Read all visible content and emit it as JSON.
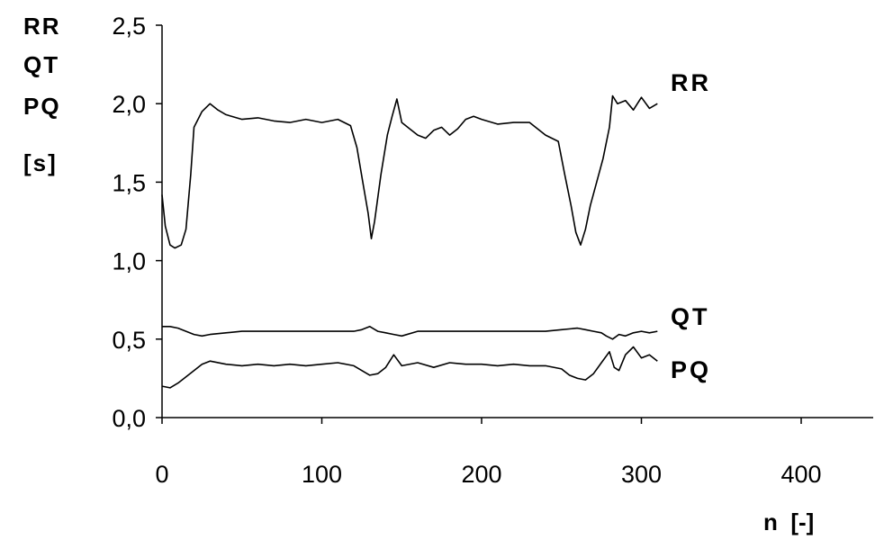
{
  "chart_data": {
    "type": "line",
    "ylabel_lines": [
      "RR",
      "QT",
      "PQ",
      "[s]"
    ],
    "xlabel": "n  [-]",
    "xlim": [
      0,
      450
    ],
    "ylim": [
      0,
      2.5
    ],
    "x_ticks": [
      0,
      100,
      200,
      300,
      400
    ],
    "x_tick_labels": [
      "0",
      "100",
      "200",
      "300",
      "400"
    ],
    "y_ticks": [
      0,
      0.5,
      1.0,
      1.5,
      2.0,
      2.5
    ],
    "y_tick_labels": [
      "0,0",
      "0,5",
      "1,0",
      "1,5",
      "2,0",
      "2,5"
    ],
    "grid": false,
    "series": [
      {
        "name": "RR",
        "x": [
          0,
          2,
          5,
          8,
          12,
          15,
          18,
          20,
          25,
          30,
          35,
          40,
          50,
          60,
          70,
          80,
          90,
          100,
          110,
          118,
          122,
          126,
          129,
          131,
          133,
          137,
          141,
          144,
          147,
          150,
          155,
          160,
          165,
          170,
          175,
          180,
          185,
          190,
          195,
          200,
          210,
          220,
          230,
          240,
          248,
          252,
          256,
          259,
          262,
          265,
          268,
          272,
          276,
          280,
          282,
          285,
          290,
          295,
          300,
          305,
          310
        ],
        "values": [
          1.42,
          1.22,
          1.1,
          1.08,
          1.1,
          1.2,
          1.55,
          1.85,
          1.95,
          2.0,
          1.96,
          1.93,
          1.9,
          1.91,
          1.89,
          1.88,
          1.9,
          1.88,
          1.9,
          1.86,
          1.72,
          1.48,
          1.3,
          1.14,
          1.25,
          1.55,
          1.8,
          1.92,
          2.03,
          1.88,
          1.84,
          1.8,
          1.78,
          1.83,
          1.85,
          1.8,
          1.84,
          1.9,
          1.92,
          1.9,
          1.87,
          1.88,
          1.88,
          1.8,
          1.76,
          1.55,
          1.35,
          1.18,
          1.1,
          1.2,
          1.35,
          1.5,
          1.65,
          1.85,
          2.05,
          2.0,
          2.02,
          1.96,
          2.04,
          1.97,
          2.0
        ]
      },
      {
        "name": "QT",
        "x": [
          0,
          5,
          10,
          15,
          20,
          25,
          30,
          40,
          50,
          60,
          80,
          100,
          120,
          125,
          130,
          135,
          140,
          145,
          150,
          160,
          170,
          180,
          200,
          220,
          240,
          250,
          260,
          265,
          270,
          275,
          278,
          282,
          286,
          290,
          295,
          300,
          305,
          310
        ],
        "values": [
          0.58,
          0.58,
          0.57,
          0.55,
          0.53,
          0.52,
          0.53,
          0.54,
          0.55,
          0.55,
          0.55,
          0.55,
          0.55,
          0.56,
          0.58,
          0.55,
          0.54,
          0.53,
          0.52,
          0.55,
          0.55,
          0.55,
          0.55,
          0.55,
          0.55,
          0.56,
          0.57,
          0.56,
          0.55,
          0.54,
          0.52,
          0.5,
          0.53,
          0.52,
          0.54,
          0.55,
          0.54,
          0.55
        ]
      },
      {
        "name": "PQ",
        "x": [
          0,
          5,
          10,
          15,
          20,
          25,
          30,
          40,
          50,
          60,
          70,
          80,
          90,
          100,
          110,
          120,
          125,
          130,
          135,
          140,
          145,
          150,
          160,
          170,
          180,
          190,
          200,
          210,
          220,
          230,
          240,
          250,
          255,
          260,
          265,
          270,
          275,
          280,
          283,
          286,
          290,
          295,
          300,
          305,
          310
        ],
        "values": [
          0.2,
          0.19,
          0.22,
          0.26,
          0.3,
          0.34,
          0.36,
          0.34,
          0.33,
          0.34,
          0.33,
          0.34,
          0.33,
          0.34,
          0.35,
          0.33,
          0.3,
          0.27,
          0.28,
          0.32,
          0.4,
          0.33,
          0.35,
          0.32,
          0.35,
          0.34,
          0.34,
          0.33,
          0.34,
          0.33,
          0.33,
          0.31,
          0.27,
          0.25,
          0.24,
          0.28,
          0.35,
          0.42,
          0.32,
          0.3,
          0.4,
          0.45,
          0.38,
          0.4,
          0.36
        ]
      }
    ]
  }
}
